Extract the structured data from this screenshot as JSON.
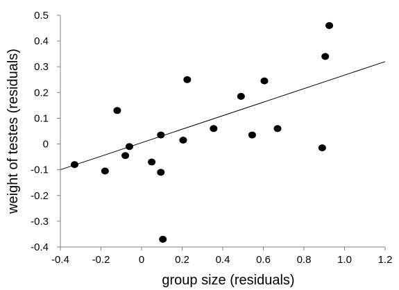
{
  "chart_data": {
    "type": "scatter",
    "xlabel": "group size (residuals)",
    "ylabel": "weight of testes (residuals)",
    "xlim": [
      -0.4,
      1.2
    ],
    "ylim": [
      -0.4,
      0.5
    ],
    "xticks": [
      -0.4,
      -0.2,
      0,
      0.2,
      0.4,
      0.6,
      0.8,
      1.0,
      1.2
    ],
    "yticks": [
      -0.4,
      -0.3,
      -0.2,
      -0.1,
      0,
      0.1,
      0.2,
      0.3,
      0.4,
      0.5
    ],
    "xtick_labels": [
      "-0.4",
      "-0.2",
      "0",
      "0.2",
      "0.4",
      "0.6",
      "0.8",
      "1.0",
      "1.2"
    ],
    "ytick_labels": [
      "-0.4",
      "-0.3",
      "-0.2",
      "-0.1",
      "0",
      "0.1",
      "0.2",
      "0.3",
      "0.4",
      "0.5"
    ],
    "grid": false,
    "legend": "none",
    "series": [
      {
        "points": [
          {
            "x": -0.33,
            "y": -0.08
          },
          {
            "x": -0.18,
            "y": -0.105
          },
          {
            "x": -0.12,
            "y": 0.13
          },
          {
            "x": -0.08,
            "y": -0.045
          },
          {
            "x": -0.06,
            "y": -0.01
          },
          {
            "x": 0.05,
            "y": -0.07
          },
          {
            "x": 0.095,
            "y": 0.035
          },
          {
            "x": 0.095,
            "y": -0.11
          },
          {
            "x": 0.105,
            "y": -0.37
          },
          {
            "x": 0.205,
            "y": 0.015
          },
          {
            "x": 0.225,
            "y": 0.25
          },
          {
            "x": 0.355,
            "y": 0.06
          },
          {
            "x": 0.49,
            "y": 0.185
          },
          {
            "x": 0.545,
            "y": 0.035
          },
          {
            "x": 0.605,
            "y": 0.245
          },
          {
            "x": 0.67,
            "y": 0.06
          },
          {
            "x": 0.89,
            "y": -0.015
          },
          {
            "x": 0.905,
            "y": 0.34
          },
          {
            "x": 0.925,
            "y": 0.46
          }
        ]
      }
    ],
    "trendline": {
      "x": [
        -0.4,
        1.2
      ],
      "y": [
        -0.1,
        0.32
      ]
    },
    "colors": {
      "points": "#000000",
      "axis": "#7f7f7f",
      "trendline": "#000000"
    }
  }
}
